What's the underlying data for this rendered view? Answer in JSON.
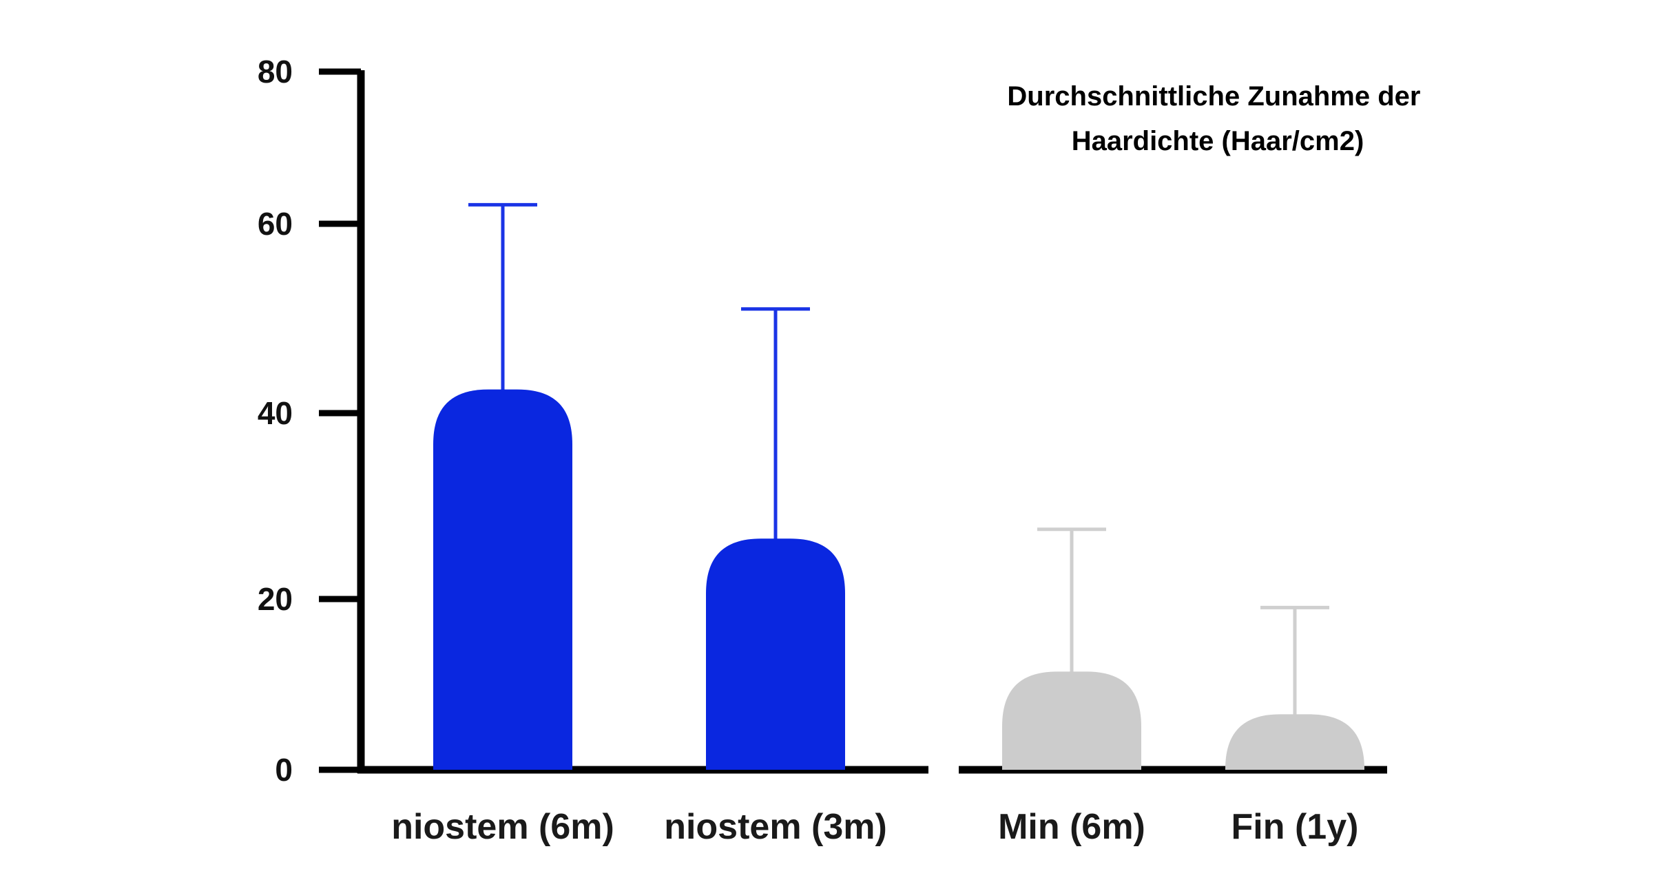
{
  "chart_data": {
    "type": "bar",
    "title_lines": [
      "Durchschnittliche Zunahme der",
      "Haardichte (Haar/cm2)"
    ],
    "xlabel": "",
    "ylabel": "",
    "ylim": [
      0,
      80
    ],
    "yticks": [
      0,
      20,
      40,
      60,
      80
    ],
    "categories": [
      "niostem (6m)",
      "niostem (3m)",
      "Min (6m)",
      "Fin (1y)"
    ],
    "values": [
      42.5,
      26.5,
      11.5,
      6.5
    ],
    "error_upper": [
      62.5,
      51,
      27.5,
      19
    ],
    "colors": [
      "#0a27e0",
      "#0a27e0",
      "#cccccc",
      "#cccccc"
    ],
    "groups": [
      [
        0,
        1
      ],
      [
        2,
        3
      ]
    ],
    "grid": false,
    "legend": "none"
  }
}
